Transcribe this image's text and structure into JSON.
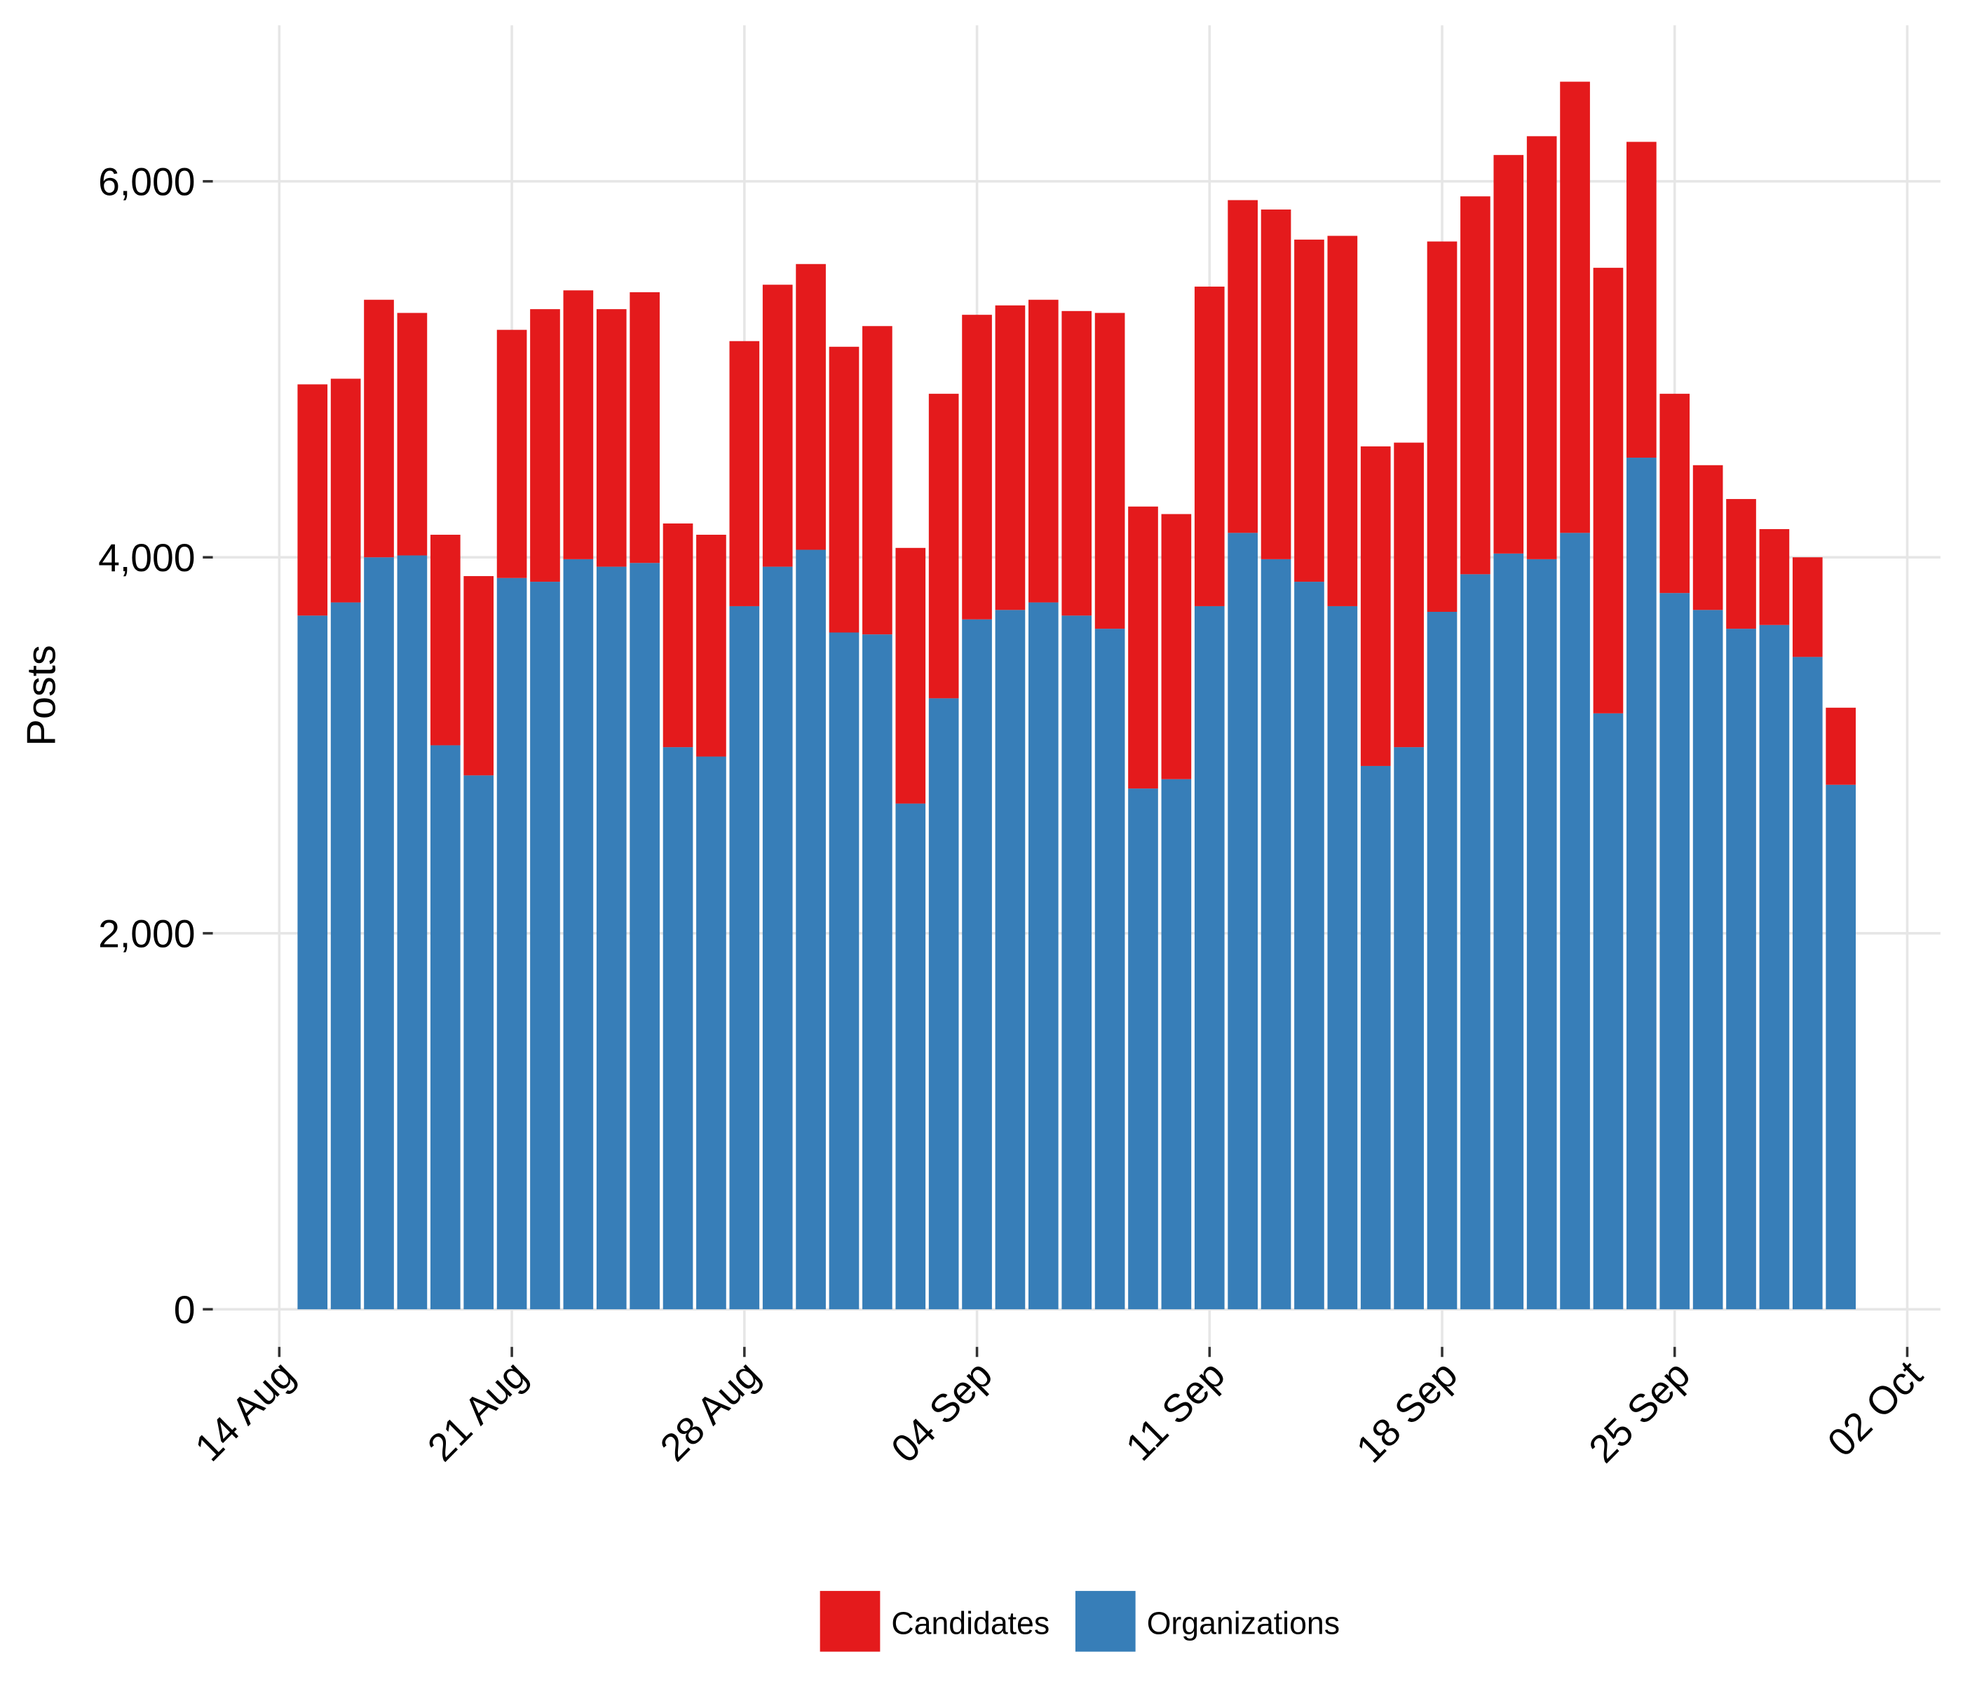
{
  "chart_data": {
    "type": "bar",
    "stacked": true,
    "y_label": "Posts",
    "x": [
      "15 Aug",
      "16 Aug",
      "17 Aug",
      "18 Aug",
      "19 Aug",
      "20 Aug",
      "21 Aug",
      "22 Aug",
      "23 Aug",
      "24 Aug",
      "25 Aug",
      "26 Aug",
      "27 Aug",
      "28 Aug",
      "29 Aug",
      "30 Aug",
      "31 Aug",
      "01 Sep",
      "02 Sep",
      "03 Sep",
      "04 Sep",
      "05 Sep",
      "06 Sep",
      "07 Sep",
      "08 Sep",
      "09 Sep",
      "10 Sep",
      "11 Sep",
      "12 Sep",
      "13 Sep",
      "14 Sep",
      "15 Sep",
      "16 Sep",
      "17 Sep",
      "18 Sep",
      "19 Sep",
      "20 Sep",
      "21 Sep",
      "22 Sep",
      "23 Sep",
      "24 Sep",
      "25 Sep",
      "26 Sep",
      "27 Sep",
      "28 Sep",
      "29 Sep",
      "30 Sep"
    ],
    "series": [
      {
        "name": "Candidates",
        "color": "#e41a1c",
        "values": [
          1230,
          1190,
          1370,
          1290,
          1120,
          1060,
          1320,
          1450,
          1430,
          1370,
          1440,
          1190,
          1180,
          1410,
          1500,
          1520,
          1520,
          1640,
          1360,
          1620,
          1620,
          1620,
          1610,
          1620,
          1680,
          1500,
          1410,
          1700,
          1770,
          1860,
          1820,
          1970,
          1700,
          1620,
          1970,
          2010,
          2120,
          2250,
          2400,
          2370,
          1680,
          1060,
          770,
          690,
          510,
          530,
          410
        ]
      },
      {
        "name": "Organizations",
        "color": "#377eb8",
        "values": [
          3690,
          3760,
          4000,
          4010,
          3000,
          2840,
          3890,
          3870,
          3990,
          3950,
          3970,
          2990,
          2940,
          3740,
          3950,
          4040,
          3600,
          3590,
          2690,
          3250,
          3670,
          3720,
          3760,
          3690,
          3620,
          2770,
          2820,
          3740,
          4130,
          3990,
          3870,
          3740,
          2890,
          2990,
          3710,
          3910,
          4020,
          3990,
          4130,
          3170,
          4530,
          3810,
          3720,
          3620,
          3640,
          3470,
          2790
        ]
      }
    ],
    "xlim": [
      "12 Aug",
      "03 Oct"
    ],
    "xticks": [
      "14 Aug",
      "21 Aug",
      "28 Aug",
      "04 Sep",
      "11 Sep",
      "18 Sep",
      "25 Sep",
      "02 Oct"
    ],
    "ylim": [
      -200,
      6830
    ],
    "yticks": [
      0,
      {
        "value": 2000,
        "label": "2,000"
      },
      {
        "value": 4000,
        "label": "4,000"
      },
      {
        "value": 6000,
        "label": "6,000"
      }
    ],
    "grid": true,
    "legend": "bottom"
  }
}
